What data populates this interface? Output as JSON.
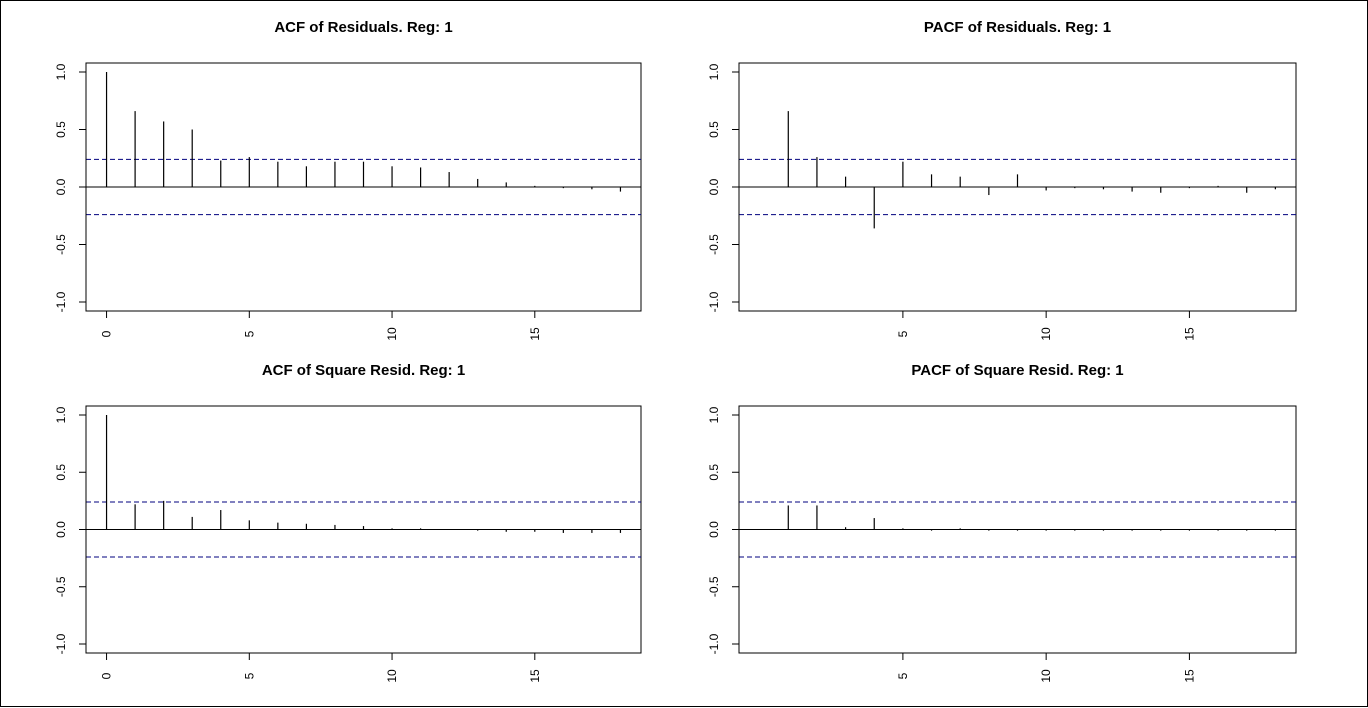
{
  "chart_data": [
    {
      "type": "bar",
      "title": "ACF of Residuals. Reg: 1",
      "xlabel": "",
      "ylabel": "",
      "x": [
        0,
        1,
        2,
        3,
        4,
        5,
        6,
        7,
        8,
        9,
        10,
        11,
        12,
        13,
        14,
        15,
        16,
        17,
        18
      ],
      "values": [
        1.0,
        0.66,
        0.57,
        0.5,
        0.23,
        0.26,
        0.22,
        0.18,
        0.22,
        0.22,
        0.18,
        0.17,
        0.13,
        0.07,
        0.04,
        0.01,
        -0.01,
        -0.02,
        -0.04
      ],
      "conf_band": [
        -0.24,
        0.24
      ],
      "xlim": [
        0,
        18
      ],
      "ylim": [
        -1.0,
        1.0
      ],
      "xticks": [
        "0",
        "5",
        "10",
        "15"
      ],
      "yticks": [
        "-1.0",
        "-0.5",
        "0.0",
        "0.5",
        "1.0"
      ],
      "grid": false,
      "colors": {
        "bars": "#000000",
        "band": "#00007f"
      }
    },
    {
      "type": "bar",
      "title": "PACF of Residuals. Reg: 1",
      "xlabel": "",
      "ylabel": "",
      "x": [
        1,
        2,
        3,
        4,
        5,
        6,
        7,
        8,
        9,
        10,
        11,
        12,
        13,
        14,
        15,
        16,
        17,
        18
      ],
      "values": [
        0.66,
        0.26,
        0.09,
        -0.36,
        0.22,
        0.11,
        0.09,
        -0.07,
        0.11,
        -0.03,
        -0.01,
        -0.02,
        -0.04,
        -0.05,
        -0.01,
        0.01,
        -0.05,
        -0.02
      ],
      "conf_band": [
        -0.24,
        0.24
      ],
      "xlim": [
        0,
        18
      ],
      "ylim": [
        -1.0,
        1.0
      ],
      "xticks": [
        "5",
        "10",
        "15"
      ],
      "yticks": [
        "-1.0",
        "-0.5",
        "0.0",
        "0.5",
        "1.0"
      ],
      "grid": false,
      "colors": {
        "bars": "#000000",
        "band": "#00007f"
      }
    },
    {
      "type": "bar",
      "title": "ACF of Square Resid. Reg: 1",
      "xlabel": "",
      "ylabel": "",
      "x": [
        0,
        1,
        2,
        3,
        4,
        5,
        6,
        7,
        8,
        9,
        10,
        11,
        12,
        13,
        14,
        15,
        16,
        17,
        18
      ],
      "values": [
        1.0,
        0.22,
        0.25,
        0.11,
        0.17,
        0.08,
        0.06,
        0.05,
        0.04,
        0.03,
        0.01,
        0.01,
        0.0,
        -0.01,
        -0.02,
        -0.02,
        -0.03,
        -0.03,
        -0.03
      ],
      "conf_band": [
        -0.24,
        0.24
      ],
      "xlim": [
        0,
        18
      ],
      "ylim": [
        -1.0,
        1.0
      ],
      "xticks": [
        "0",
        "5",
        "10",
        "15"
      ],
      "yticks": [
        "-1.0",
        "-0.5",
        "0.0",
        "0.5",
        "1.0"
      ],
      "grid": false,
      "colors": {
        "bars": "#000000",
        "band": "#00007f"
      }
    },
    {
      "type": "bar",
      "title": "PACF of Square Resid. Reg: 1",
      "xlabel": "",
      "ylabel": "",
      "x": [
        1,
        2,
        3,
        4,
        5,
        6,
        7,
        8,
        9,
        10,
        11,
        12,
        13,
        14,
        15,
        16,
        17,
        18
      ],
      "values": [
        0.21,
        0.21,
        0.02,
        0.1,
        0.01,
        -0.01,
        0.01,
        -0.01,
        -0.01,
        -0.01,
        -0.01,
        -0.01,
        -0.01,
        -0.01,
        -0.01,
        -0.01,
        -0.01,
        -0.01
      ],
      "conf_band": [
        -0.24,
        0.24
      ],
      "xlim": [
        0,
        18
      ],
      "ylim": [
        -1.0,
        1.0
      ],
      "xticks": [
        "5",
        "10",
        "15"
      ],
      "yticks": [
        "-1.0",
        "-0.5",
        "0.0",
        "0.5",
        "1.0"
      ],
      "grid": false,
      "colors": {
        "bars": "#000000",
        "band": "#00007f"
      }
    }
  ]
}
